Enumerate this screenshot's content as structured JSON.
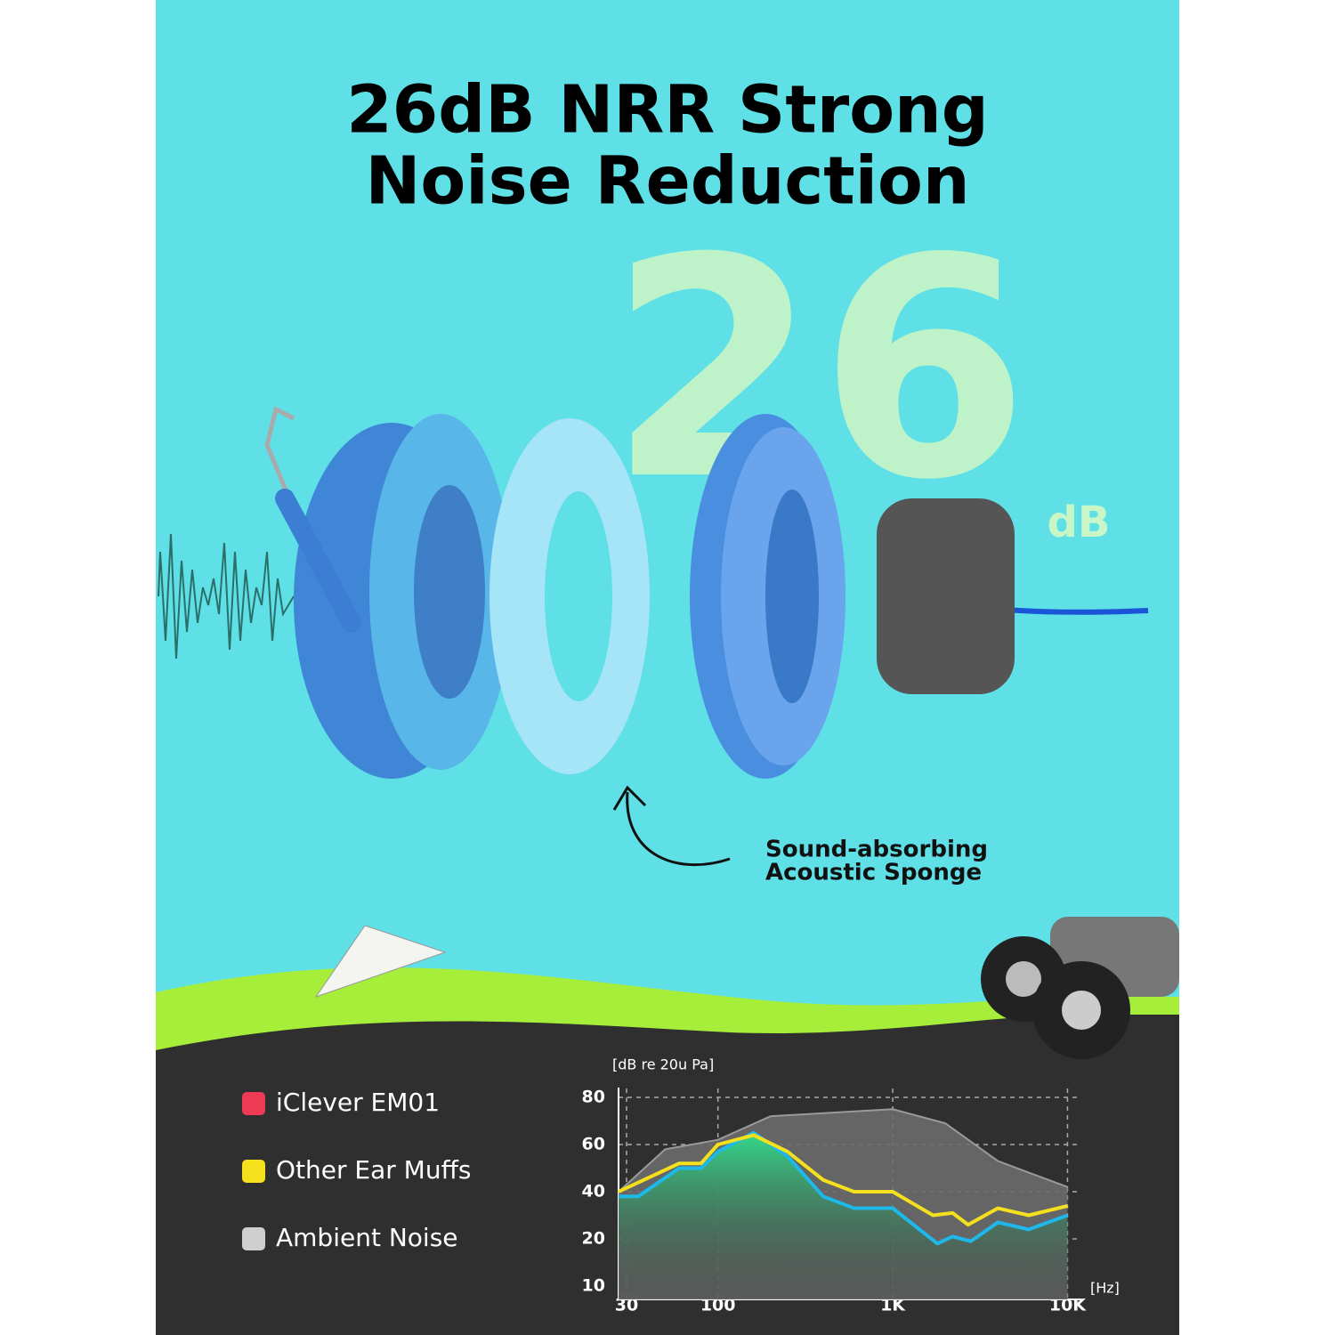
{
  "header": {
    "title": [
      "26dB NRR Strong",
      "Noise Reduction"
    ]
  },
  "badge": {
    "number": "26",
    "unit": "dB"
  },
  "callout": [
    "Sound-absorbing",
    "Acoustic Sponge"
  ],
  "chart_data": {
    "type": "line",
    "y_axis_label": "[dB re 20u Pa]",
    "x_axis_label": "[Hz]",
    "log_x": true,
    "grid": true,
    "xlim": [
      27,
      12000
    ],
    "xticks": [
      30,
      100,
      {
        "value": 1000,
        "label": "1K"
      },
      {
        "value": 10000,
        "label": "10K"
      }
    ],
    "ylim": [
      0,
      80
    ],
    "yticks": [
      20,
      40,
      60,
      80
    ],
    "y_axis_min_label": "10",
    "series": [
      {
        "name": "iClever EM01",
        "color": "#ee3a55",
        "line_color": "#1fb8ea",
        "x": [
          27,
          35,
          60,
          80,
          100,
          160,
          250,
          400,
          600,
          1000,
          1800,
          2200,
          2800,
          4000,
          6000,
          10000
        ],
        "values": [
          38,
          38,
          50,
          50,
          57,
          65,
          55,
          38,
          33,
          33,
          18,
          21,
          19,
          27,
          24,
          30
        ]
      },
      {
        "name": "Other Ear Muffs",
        "color": "#f4e01c",
        "line_color": "#f4e01c",
        "x": [
          27,
          60,
          80,
          100,
          160,
          250,
          400,
          600,
          1000,
          1700,
          2200,
          2700,
          4000,
          6000,
          10000
        ],
        "values": [
          40,
          52,
          52,
          60,
          64,
          57,
          45,
          40,
          40,
          30,
          31,
          26,
          33,
          30,
          34
        ]
      },
      {
        "name": "Ambient Noise",
        "color": "#cfcfcf",
        "line_color": "#9a9a9a",
        "x": [
          27,
          50,
          100,
          200,
          1000,
          2000,
          4000,
          10000
        ],
        "values": [
          40,
          58,
          62,
          72,
          75,
          69,
          53,
          42
        ]
      }
    ]
  }
}
